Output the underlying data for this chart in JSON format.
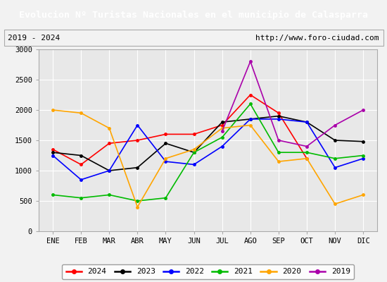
{
  "title": "Evolucion Nº Turistas Nacionales en el municipio de Calasparra",
  "subtitle_left": "2019 - 2024",
  "subtitle_right": "http://www.foro-ciudad.com",
  "title_bg_color": "#4f81bd",
  "title_text_color": "#ffffff",
  "months": [
    "ENE",
    "FEB",
    "MAR",
    "ABR",
    "MAY",
    "JUN",
    "JUL",
    "AGO",
    "SEP",
    "OCT",
    "NOV",
    "DIC"
  ],
  "ylim": [
    0,
    3000
  ],
  "yticks": [
    0,
    500,
    1000,
    1500,
    2000,
    2500,
    3000
  ],
  "series": {
    "2024": {
      "color": "#ff0000",
      "values": [
        1350,
        1100,
        1450,
        1500,
        1600,
        1600,
        1750,
        2250,
        1950,
        1200,
        null,
        null
      ]
    },
    "2023": {
      "color": "#000000",
      "values": [
        1300,
        1250,
        1000,
        1050,
        1450,
        1300,
        1800,
        1850,
        1900,
        1800,
        1500,
        1480
      ]
    },
    "2022": {
      "color": "#0000ff",
      "values": [
        1250,
        850,
        1000,
        1750,
        1150,
        1100,
        1400,
        1850,
        1850,
        1800,
        1050,
        1200
      ]
    },
    "2021": {
      "color": "#00bb00",
      "values": [
        600,
        550,
        600,
        500,
        550,
        1300,
        1550,
        2100,
        1300,
        1300,
        1200,
        1250
      ]
    },
    "2020": {
      "color": "#ffa500",
      "values": [
        2000,
        1950,
        1700,
        400,
        1200,
        1350,
        1700,
        1750,
        1150,
        1200,
        450,
        600
      ]
    },
    "2019": {
      "color": "#aa00aa",
      "values": [
        null,
        null,
        null,
        null,
        null,
        null,
        1650,
        2800,
        1500,
        1400,
        1750,
        2000
      ]
    }
  },
  "legend_order": [
    "2024",
    "2023",
    "2022",
    "2021",
    "2020",
    "2019"
  ],
  "bg_plot_color": "#e8e8e8",
  "grid_color": "#ffffff",
  "fig_bg_color": "#f2f2f2"
}
